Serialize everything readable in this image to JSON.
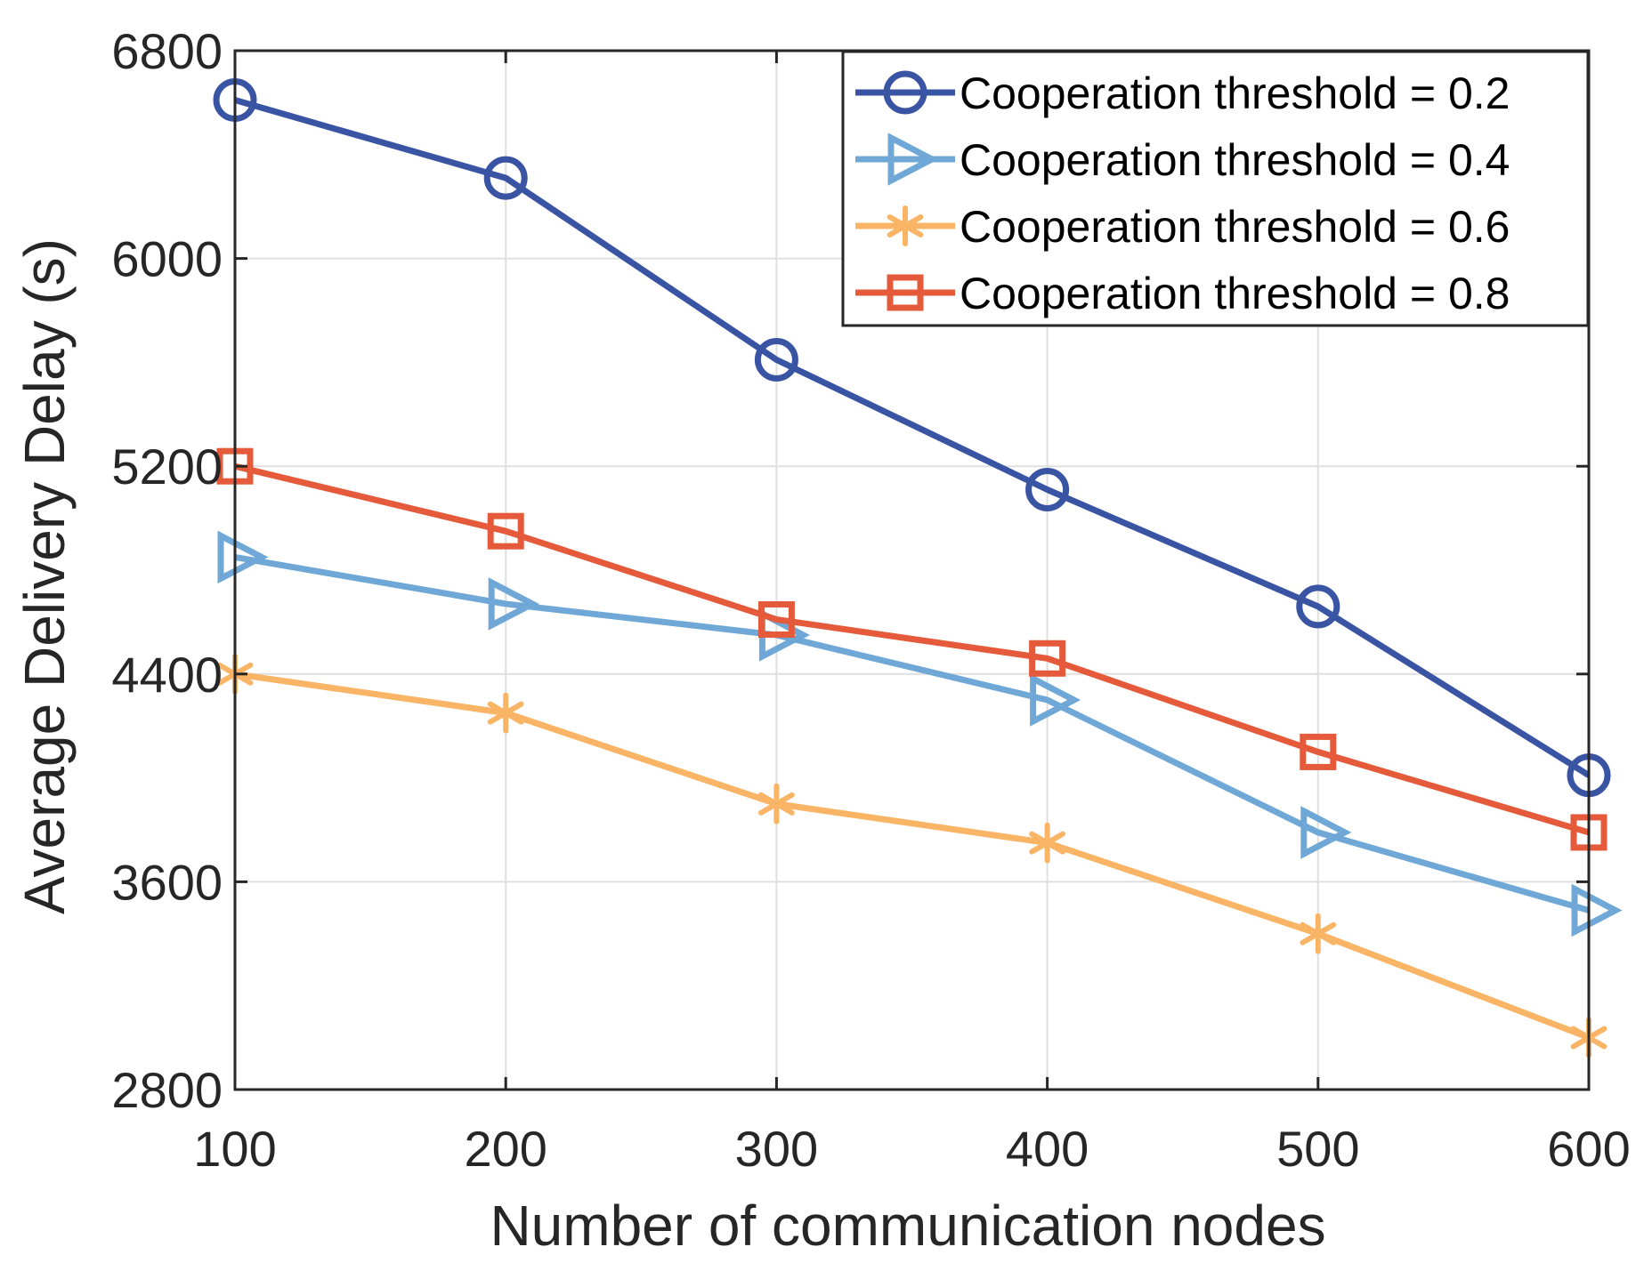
{
  "chart_data": {
    "type": "line",
    "title": "",
    "xlabel": "Number of communication nodes",
    "ylabel": "Average Delivery Delay (s)",
    "x": [
      100,
      200,
      300,
      400,
      500,
      600
    ],
    "xlim": [
      100,
      600
    ],
    "ylim": [
      2800,
      6800
    ],
    "xticks": [
      "100",
      "200",
      "300",
      "400",
      "500",
      "600"
    ],
    "yticks": [
      "2800",
      "3600",
      "4400",
      "5200",
      "6000",
      "6800"
    ],
    "grid": true,
    "legend_position": "top-right",
    "series": [
      {
        "name": "Cooperation threshold = 0.2",
        "marker": "circle",
        "color": "#3A54A4",
        "values": [
          6610,
          6310,
          5610,
          5110,
          4660,
          4010
        ]
      },
      {
        "name": "Cooperation threshold = 0.4",
        "marker": "triangle-right",
        "color": "#6FA8D6",
        "values": [
          4850,
          4670,
          4550,
          4300,
          3790,
          3490
        ]
      },
      {
        "name": "Cooperation threshold = 0.6",
        "marker": "asterisk",
        "color": "#F9B465",
        "values": [
          4400,
          4250,
          3900,
          3750,
          3400,
          3000
        ]
      },
      {
        "name": "Cooperation threshold = 0.8",
        "marker": "square",
        "color": "#E45A3A",
        "values": [
          5200,
          4950,
          4610,
          4460,
          4100,
          3790
        ]
      }
    ]
  }
}
